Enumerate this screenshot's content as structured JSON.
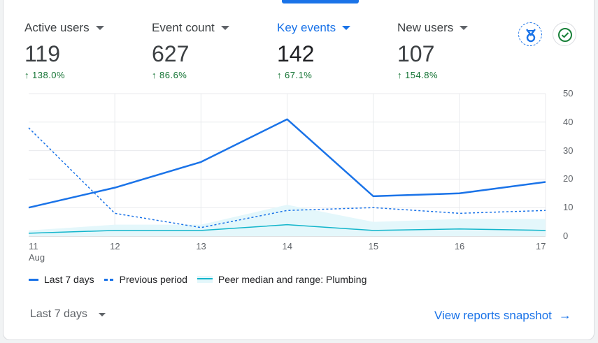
{
  "metrics": [
    {
      "label": "Active users",
      "value": "119",
      "change": "138.0%",
      "active": false
    },
    {
      "label": "Event count",
      "value": "627",
      "change": "86.6%",
      "active": false
    },
    {
      "label": "Key events",
      "value": "142",
      "change": "67.1%",
      "active": true
    },
    {
      "label": "New users",
      "value": "107",
      "change": "154.8%",
      "active": false
    }
  ],
  "icons": {
    "insights": "insights-badge-icon",
    "check": "check-circle-icon"
  },
  "colors": {
    "accent": "#1a73e8",
    "positive": "#137333",
    "peer": "#12b5cb",
    "peer_band": "#e4f7fb"
  },
  "chart_data": {
    "type": "line",
    "categories": [
      "11",
      "12",
      "13",
      "14",
      "15",
      "16",
      "17"
    ],
    "x_sublabel": "Aug",
    "ylim": [
      0,
      50
    ],
    "yticks": [
      0,
      10,
      20,
      30,
      40,
      50
    ],
    "series": [
      {
        "name": "Last 7 days",
        "style": "solid",
        "values": [
          10,
          17,
          26,
          41,
          14,
          15,
          19
        ]
      },
      {
        "name": "Previous period",
        "style": "dashed",
        "values": [
          38,
          8,
          3,
          9,
          10,
          8,
          9
        ]
      },
      {
        "name": "Peer median and range: Plumbing",
        "style": "band",
        "values": [
          1,
          2,
          2,
          4,
          2,
          2.5,
          2
        ],
        "range_high": [
          2,
          4,
          4,
          11,
          5,
          6,
          6
        ]
      }
    ]
  },
  "legend": [
    "Last 7 days",
    "Previous period",
    "Peer median and range: Plumbing"
  ],
  "footer": {
    "range_label": "Last 7 days",
    "link_label": "View reports snapshot"
  }
}
